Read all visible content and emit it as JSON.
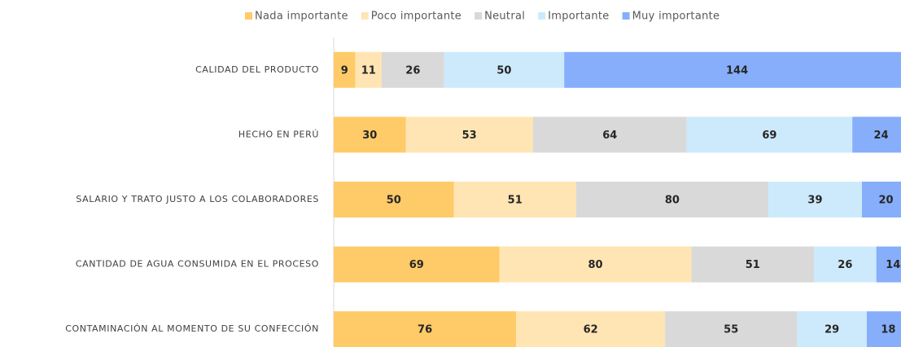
{
  "chart_data": {
    "type": "stacked_barh",
    "categories": [
      "CALIDAD DEL PRODUCTO",
      "HECHO EN PERÚ",
      "SALARIO Y TRATO JUSTO A LOS COLABORADORES",
      "CANTIDAD DE AGUA CONSUMIDA EN EL PROCESO",
      "CONTAMINACIÓN AL MOMENTO DE SU CONFECCIÓN"
    ],
    "series": [
      {
        "name": "Nada importante",
        "color": "#ffca68",
        "values": [
          9,
          30,
          50,
          69,
          76
        ]
      },
      {
        "name": "Poco importante",
        "color": "#ffe5b3",
        "values": [
          11,
          53,
          51,
          80,
          62
        ]
      },
      {
        "name": "Neutral",
        "color": "#d9d9d9",
        "values": [
          26,
          64,
          80,
          51,
          55
        ]
      },
      {
        "name": "Importante",
        "color": "#cdeafc",
        "values": [
          50,
          69,
          39,
          26,
          29
        ]
      },
      {
        "name": "Muy importante",
        "color": "#87aefb",
        "values": [
          144,
          24,
          20,
          14,
          18
        ]
      }
    ],
    "xlim": [
      0,
      240
    ],
    "legend": "top"
  }
}
